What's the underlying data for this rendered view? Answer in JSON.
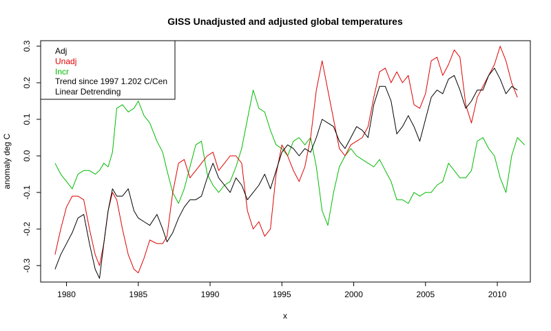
{
  "chart_data": {
    "type": "line",
    "title": "GISS Unadjusted and adjusted global temperatures",
    "xlabel": "x",
    "ylabel": "anomaly deg C",
    "xlim": [
      1978.2,
      2012.3
    ],
    "ylim": [
      -0.345,
      0.315
    ],
    "x_ticks": [
      1980,
      1985,
      1990,
      1995,
      2000,
      2005,
      2010
    ],
    "y_ticks": [
      -0.3,
      -0.2,
      -0.1,
      0.0,
      0.1,
      0.2,
      0.3
    ],
    "y_tick_labels": [
      "-0.3",
      "-0.2",
      "-0.1",
      "0.0",
      "0.1",
      "0.2",
      "0.3"
    ],
    "grid": false,
    "legend": {
      "placement": "top-left",
      "entries": [
        {
          "text": "Adj",
          "color": "#000000"
        },
        {
          "text": "Unadj",
          "color": "#dd0000"
        },
        {
          "text": "Incr",
          "color": "#00bb00"
        },
        {
          "text": "Trend since 1997 1.202 C/Cen",
          "color": "#000000"
        },
        {
          "text": "Linear Detrending",
          "color": "#000000"
        }
      ]
    },
    "series": [
      {
        "name": "Adj",
        "color": "#000000",
        "x": [
          1979.2,
          1979.6,
          1980.0,
          1980.4,
          1980.8,
          1981.2,
          1981.6,
          1982.0,
          1982.3,
          1982.6,
          1982.9,
          1983.2,
          1983.5,
          1983.9,
          1984.3,
          1984.7,
          1985.0,
          1985.4,
          1985.8,
          1986.3,
          1986.7,
          1987.0,
          1987.4,
          1987.8,
          1988.2,
          1988.6,
          1989.0,
          1989.4,
          1989.8,
          1990.2,
          1990.6,
          1991.0,
          1991.4,
          1991.8,
          1992.2,
          1992.6,
          1993.0,
          1993.4,
          1993.8,
          1994.2,
          1994.6,
          1995.0,
          1995.4,
          1995.8,
          1996.2,
          1996.6,
          1997.0,
          1997.4,
          1997.8,
          1998.2,
          1998.6,
          1999.0,
          1999.4,
          1999.8,
          2000.2,
          2000.6,
          2001.0,
          2001.4,
          2001.8,
          2002.2,
          2002.6,
          2003.0,
          2003.4,
          2003.8,
          2004.2,
          2004.6,
          2005.0,
          2005.4,
          2005.8,
          2006.2,
          2006.6,
          2007.0,
          2007.4,
          2007.8,
          2008.2,
          2008.6,
          2009.0,
          2009.4,
          2009.8,
          2010.2,
          2010.6,
          2011.0,
          2011.4
        ],
        "y": [
          -0.31,
          -0.27,
          -0.24,
          -0.21,
          -0.17,
          -0.16,
          -0.24,
          -0.31,
          -0.335,
          -0.24,
          -0.15,
          -0.09,
          -0.11,
          -0.11,
          -0.09,
          -0.15,
          -0.17,
          -0.18,
          -0.19,
          -0.16,
          -0.2,
          -0.235,
          -0.21,
          -0.17,
          -0.14,
          -0.12,
          -0.12,
          -0.11,
          -0.06,
          -0.02,
          -0.06,
          -0.08,
          -0.1,
          -0.06,
          -0.08,
          -0.12,
          -0.1,
          -0.08,
          -0.05,
          -0.09,
          -0.04,
          0.01,
          0.03,
          0.02,
          0.0,
          0.02,
          0.01,
          0.05,
          0.1,
          0.09,
          0.08,
          0.04,
          0.02,
          0.05,
          0.08,
          0.07,
          0.05,
          0.14,
          0.19,
          0.19,
          0.15,
          0.06,
          0.08,
          0.11,
          0.08,
          0.04,
          0.1,
          0.16,
          0.18,
          0.17,
          0.21,
          0.22,
          0.18,
          0.13,
          0.15,
          0.18,
          0.18,
          0.22,
          0.24,
          0.21,
          0.17,
          0.19,
          0.18
        ]
      },
      {
        "name": "Unadj",
        "color": "#dd0000",
        "x": [
          1979.2,
          1979.6,
          1980.0,
          1980.4,
          1980.8,
          1981.2,
          1981.6,
          1982.0,
          1982.3,
          1982.6,
          1982.9,
          1983.2,
          1983.5,
          1983.9,
          1984.3,
          1984.7,
          1985.0,
          1985.4,
          1985.8,
          1986.3,
          1986.7,
          1987.0,
          1987.4,
          1987.8,
          1988.2,
          1988.6,
          1989.0,
          1989.4,
          1989.8,
          1990.2,
          1990.6,
          1991.0,
          1991.4,
          1991.8,
          1992.2,
          1992.6,
          1993.0,
          1993.4,
          1993.8,
          1994.2,
          1994.6,
          1995.0,
          1995.4,
          1995.8,
          1996.2,
          1996.6,
          1997.0,
          1997.4,
          1997.8,
          1998.2,
          1998.6,
          1999.0,
          1999.4,
          1999.8,
          2000.2,
          2000.6,
          2001.0,
          2001.4,
          2001.8,
          2002.2,
          2002.6,
          2003.0,
          2003.4,
          2003.8,
          2004.2,
          2004.6,
          2005.0,
          2005.4,
          2005.8,
          2006.2,
          2006.6,
          2007.0,
          2007.4,
          2007.8,
          2008.2,
          2008.6,
          2009.0,
          2009.4,
          2009.8,
          2010.2,
          2010.6,
          2011.0,
          2011.4
        ],
        "y": [
          -0.27,
          -0.2,
          -0.14,
          -0.11,
          -0.11,
          -0.12,
          -0.2,
          -0.27,
          -0.3,
          -0.24,
          -0.15,
          -0.1,
          -0.12,
          -0.2,
          -0.27,
          -0.31,
          -0.32,
          -0.28,
          -0.23,
          -0.24,
          -0.24,
          -0.22,
          -0.1,
          -0.02,
          -0.01,
          -0.06,
          -0.04,
          -0.02,
          0.0,
          0.01,
          -0.04,
          -0.02,
          0.0,
          0.0,
          -0.02,
          -0.15,
          -0.2,
          -0.18,
          -0.22,
          -0.2,
          -0.05,
          0.03,
          0.0,
          -0.04,
          -0.07,
          -0.03,
          0.05,
          0.18,
          0.26,
          0.18,
          0.1,
          0.02,
          0.0,
          0.03,
          0.04,
          0.05,
          0.08,
          0.16,
          0.23,
          0.24,
          0.2,
          0.23,
          0.2,
          0.22,
          0.14,
          0.13,
          0.17,
          0.26,
          0.27,
          0.22,
          0.25,
          0.29,
          0.27,
          0.14,
          0.09,
          0.16,
          0.19,
          0.22,
          0.25,
          0.3,
          0.26,
          0.2,
          0.16
        ]
      },
      {
        "name": "Incr",
        "color": "#00bb00",
        "x": [
          1979.2,
          1979.6,
          1980.0,
          1980.4,
          1980.8,
          1981.2,
          1981.6,
          1982.0,
          1982.3,
          1982.6,
          1982.9,
          1983.2,
          1983.5,
          1983.9,
          1984.3,
          1984.7,
          1985.0,
          1985.4,
          1985.8,
          1986.3,
          1986.7,
          1987.0,
          1987.4,
          1987.8,
          1988.2,
          1988.6,
          1989.0,
          1989.4,
          1989.8,
          1990.2,
          1990.6,
          1991.0,
          1991.4,
          1991.8,
          1992.2,
          1992.6,
          1993.0,
          1993.4,
          1993.8,
          1994.2,
          1994.6,
          1995.0,
          1995.4,
          1995.8,
          1996.2,
          1996.6,
          1997.0,
          1997.4,
          1997.8,
          1998.2,
          1998.6,
          1999.0,
          1999.4,
          1999.8,
          2000.2,
          2000.6,
          2001.0,
          2001.4,
          2001.8,
          2002.2,
          2002.6,
          2003.0,
          2003.4,
          2003.8,
          2004.2,
          2004.6,
          2005.0,
          2005.4,
          2005.8,
          2006.2,
          2006.6,
          2007.0,
          2007.4,
          2007.8,
          2008.2,
          2008.6,
          2009.0,
          2009.4,
          2009.8,
          2010.2,
          2010.6,
          2011.0,
          2011.4,
          2011.9
        ],
        "y": [
          -0.02,
          -0.05,
          -0.07,
          -0.09,
          -0.05,
          -0.04,
          -0.04,
          -0.05,
          -0.04,
          -0.02,
          -0.03,
          0.01,
          0.13,
          0.14,
          0.12,
          0.13,
          0.15,
          0.11,
          0.09,
          0.04,
          0.01,
          -0.04,
          -0.1,
          -0.13,
          -0.09,
          -0.03,
          0.03,
          0.04,
          -0.05,
          -0.08,
          -0.1,
          -0.08,
          -0.07,
          -0.03,
          0.02,
          0.1,
          0.18,
          0.13,
          0.12,
          0.07,
          0.03,
          0.02,
          0.0,
          0.04,
          0.05,
          0.03,
          0.05,
          -0.03,
          -0.15,
          -0.19,
          -0.1,
          -0.03,
          0.0,
          0.02,
          0.0,
          -0.01,
          -0.02,
          -0.03,
          -0.01,
          -0.04,
          -0.07,
          -0.12,
          -0.12,
          -0.13,
          -0.1,
          -0.11,
          -0.1,
          -0.1,
          -0.08,
          -0.07,
          -0.02,
          -0.04,
          -0.06,
          -0.06,
          -0.04,
          0.04,
          0.05,
          0.02,
          0.0,
          -0.06,
          -0.1,
          0.0,
          0.05,
          0.03
        ]
      }
    ]
  }
}
